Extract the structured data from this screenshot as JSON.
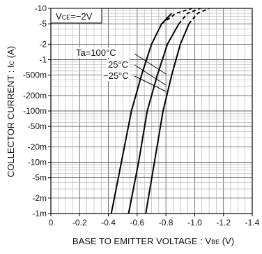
{
  "chart_data": {
    "type": "line",
    "title": "",
    "condition_main": "V",
    "condition_sub": "CE",
    "condition_rest": "=−2V",
    "xlabel_main": "BASE  TO  EMITTER VOLTAGE : V",
    "xlabel_sub": "BE",
    "xlabel_unit": " (V)",
    "ylabel_main": "COLLECTOR  CURRENT : I",
    "ylabel_sub": "C",
    "ylabel_unit": " (A)",
    "x_axis": {
      "direction": "decreasing",
      "range": [
        0,
        -1.4
      ],
      "ticks": [
        0,
        -0.2,
        -0.4,
        -0.6,
        -0.8,
        -1.0,
        -1.2,
        -1.4
      ],
      "tick_labels": [
        "0",
        "-0.2",
        "-0.4",
        "-0.6",
        "-0.8",
        "-1.0",
        "-1.2",
        "-1.4"
      ]
    },
    "y_axis": {
      "scale": "log",
      "range": [
        -0.001,
        -10
      ],
      "ticks": [
        -10,
        -5,
        -2,
        -1,
        -0.5,
        -0.2,
        -0.1,
        -0.05,
        -0.02,
        -0.01,
        -0.005,
        -0.002,
        -0.001
      ],
      "tick_labels": [
        "-10",
        "-5",
        "-2",
        "-1",
        "-500m",
        "-200m",
        "-100m",
        "-50m",
        "-20m",
        "-10m",
        "-5m",
        "-2m",
        "-1m"
      ]
    },
    "grid": true,
    "series": [
      {
        "name": "Ta=100°C",
        "x": [
          -0.42,
          -0.49,
          -0.56,
          -0.63,
          -0.7,
          -0.77,
          -0.84
        ],
        "y": [
          -0.001,
          -0.01,
          -0.1,
          -0.5,
          -2,
          -5,
          -8
        ],
        "dashed_from_y": -5,
        "dashed_x": [
          -0.77,
          -0.87,
          -0.98
        ],
        "dashed_y": [
          -5,
          -8,
          -10
        ]
      },
      {
        "name": "25°C",
        "x": [
          -0.54,
          -0.61,
          -0.67,
          -0.74,
          -0.81,
          -0.89
        ],
        "y": [
          -0.001,
          -0.01,
          -0.1,
          -0.5,
          -2,
          -5
        ],
        "dashed_x": [
          -0.89,
          -0.95,
          -1.04
        ],
        "dashed_y": [
          -5,
          -8,
          -10
        ]
      },
      {
        "name": "−25°C",
        "x": [
          -0.66,
          -0.72,
          -0.78,
          -0.84,
          -0.9,
          -0.96
        ],
        "y": [
          -0.001,
          -0.01,
          -0.1,
          -0.5,
          -2,
          -5
        ],
        "dashed_x": [
          -0.96,
          -1.02,
          -1.1
        ],
        "dashed_y": [
          -5,
          -8,
          -10
        ]
      }
    ]
  }
}
